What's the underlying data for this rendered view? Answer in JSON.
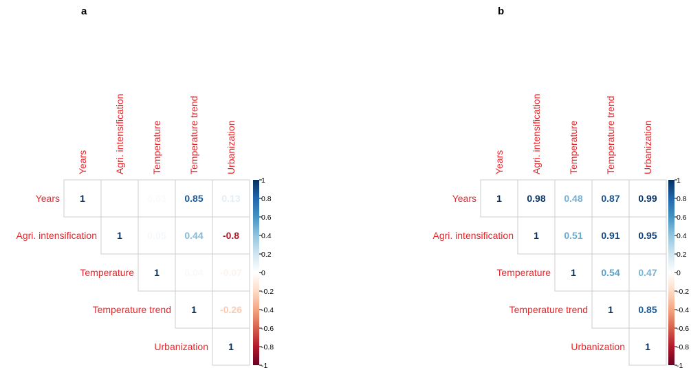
{
  "colors": {
    "label": "#e8262b",
    "grid": "#cccccc",
    "scale_low": "#67001f",
    "scale_mid": "#ffffff",
    "scale_high": "#053061"
  },
  "chart_data": [
    {
      "type": "heatmap",
      "panel_label": "a",
      "variables": [
        "Years",
        "Agri. intensification",
        "Temperature",
        "Temperature trend",
        "Urbanization"
      ],
      "layout": "upper-triangle",
      "matrix": [
        [
          1,
          0.01,
          0.03,
          0.85,
          0.13
        ],
        [
          null,
          1,
          0.05,
          0.44,
          -0.8
        ],
        [
          null,
          null,
          1,
          0.04,
          -0.07
        ],
        [
          null,
          null,
          null,
          1,
          -0.26
        ],
        [
          null,
          null,
          null,
          null,
          1
        ]
      ],
      "legend": {
        "range": [
          -1,
          1
        ],
        "ticks": [
          "1",
          "0.8",
          "0.6",
          "0.4",
          "0.2",
          "0",
          "-0.2",
          "-0.4",
          "-0.6",
          "-0.8",
          "-1"
        ]
      }
    },
    {
      "type": "heatmap",
      "panel_label": "b",
      "variables": [
        "Years",
        "Agri. intensification",
        "Temperature",
        "Temperature trend",
        "Urbanization"
      ],
      "layout": "upper-triangle",
      "matrix": [
        [
          1,
          0.98,
          0.48,
          0.87,
          0.99
        ],
        [
          null,
          1,
          0.51,
          0.91,
          0.95
        ],
        [
          null,
          null,
          1,
          0.54,
          0.47
        ],
        [
          null,
          null,
          null,
          1,
          0.85
        ],
        [
          null,
          null,
          null,
          null,
          1
        ]
      ],
      "legend": {
        "range": [
          -1,
          1
        ],
        "ticks": [
          "1",
          "0.8",
          "0.6",
          "0.4",
          "0.2",
          "0",
          "-0.2",
          "-0.4",
          "-0.6",
          "-0.8",
          "-1"
        ]
      }
    }
  ]
}
